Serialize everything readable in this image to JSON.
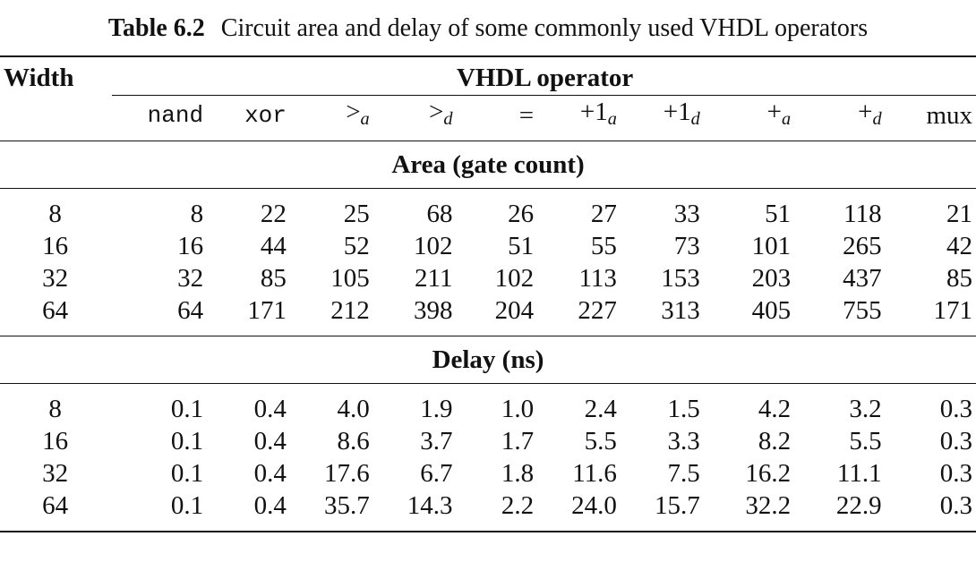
{
  "caption": {
    "number": "Table 6.2",
    "text": "Circuit area and delay of some commonly used VHDL operators"
  },
  "headers": {
    "width": "Width",
    "group": "VHDL operator",
    "columns": [
      {
        "main": "nand",
        "sub": ""
      },
      {
        "main": "xor",
        "sub": ""
      },
      {
        "main": ">",
        "sub": "a"
      },
      {
        "main": ">",
        "sub": "d"
      },
      {
        "main": "=",
        "sub": ""
      },
      {
        "main": "+1",
        "sub": "a"
      },
      {
        "main": "+1",
        "sub": "d"
      },
      {
        "main": "+",
        "sub": "a"
      },
      {
        "main": "+",
        "sub": "d"
      },
      {
        "main": "mux",
        "sub": ""
      }
    ]
  },
  "sections": [
    {
      "title": "Area (gate count)",
      "rows": [
        {
          "width": "8",
          "values": [
            "8",
            "22",
            "25",
            "68",
            "26",
            "27",
            "33",
            "51",
            "118",
            "21"
          ]
        },
        {
          "width": "16",
          "values": [
            "16",
            "44",
            "52",
            "102",
            "51",
            "55",
            "73",
            "101",
            "265",
            "42"
          ]
        },
        {
          "width": "32",
          "values": [
            "32",
            "85",
            "105",
            "211",
            "102",
            "113",
            "153",
            "203",
            "437",
            "85"
          ]
        },
        {
          "width": "64",
          "values": [
            "64",
            "171",
            "212",
            "398",
            "204",
            "227",
            "313",
            "405",
            "755",
            "171"
          ]
        }
      ]
    },
    {
      "title": "Delay (ns)",
      "rows": [
        {
          "width": "8",
          "values": [
            "0.1",
            "0.4",
            "4.0",
            "1.9",
            "1.0",
            "2.4",
            "1.5",
            "4.2",
            "3.2",
            "0.3"
          ]
        },
        {
          "width": "16",
          "values": [
            "0.1",
            "0.4",
            "8.6",
            "3.7",
            "1.7",
            "5.5",
            "3.3",
            "8.2",
            "5.5",
            "0.3"
          ]
        },
        {
          "width": "32",
          "values": [
            "0.1",
            "0.4",
            "17.6",
            "6.7",
            "1.8",
            "11.6",
            "7.5",
            "16.2",
            "11.1",
            "0.3"
          ]
        },
        {
          "width": "64",
          "values": [
            "0.1",
            "0.4",
            "35.7",
            "14.3",
            "2.2",
            "24.0",
            "15.7",
            "32.2",
            "22.9",
            "0.3"
          ]
        }
      ]
    }
  ]
}
